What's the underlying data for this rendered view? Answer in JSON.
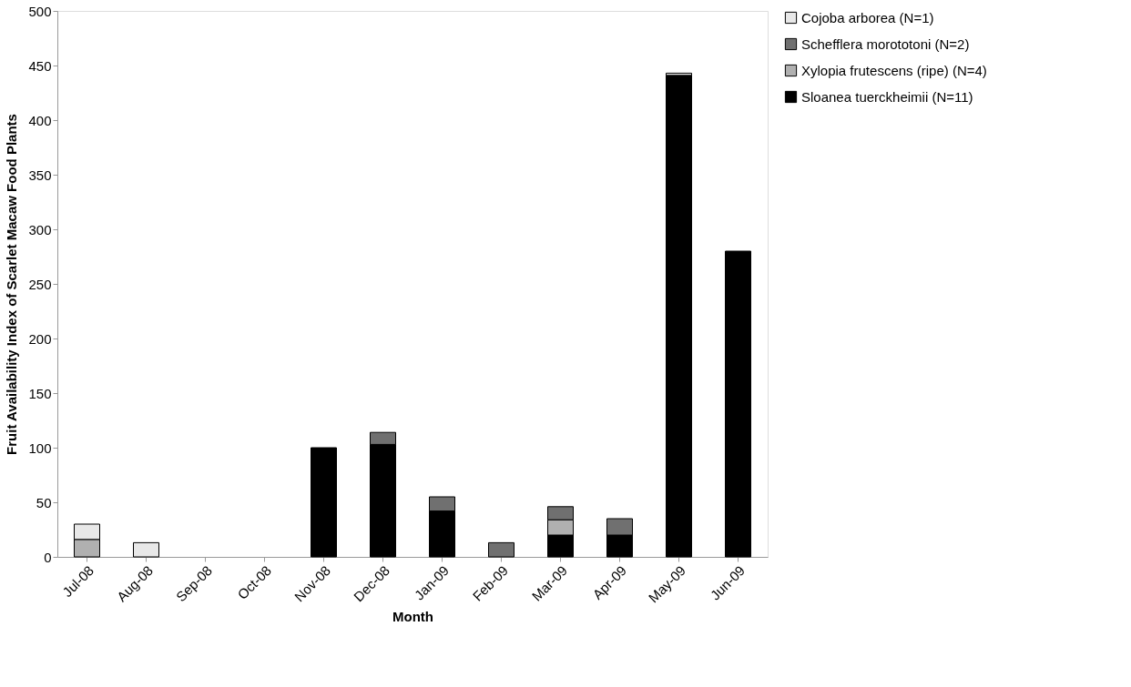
{
  "chart_data": {
    "type": "bar",
    "stacked": true,
    "xlabel": "Month",
    "ylabel": "Fruit Availability Index of Scarlet Macaw Food Plants",
    "categories": [
      "Jul-08",
      "Aug-08",
      "Sep-08",
      "Oct-08",
      "Nov-08",
      "Dec-08",
      "Jan-09",
      "Feb-09",
      "Mar-09",
      "Apr-09",
      "May-09",
      "Jun-09"
    ],
    "series": [
      {
        "name": "Sloanea tuerckheimii (N=11)",
        "color": "#000000",
        "values": [
          null,
          null,
          null,
          null,
          100,
          103,
          42,
          null,
          20,
          20,
          441,
          280
        ]
      },
      {
        "name": "Xylopia frutescens (ripe) (N=4)",
        "color": "#b0b0b0",
        "values": [
          16,
          null,
          null,
          null,
          null,
          null,
          null,
          null,
          14,
          null,
          null,
          null
        ]
      },
      {
        "name": "Schefflera morototoni (N=2)",
        "color": "#707070",
        "values": [
          null,
          null,
          null,
          null,
          null,
          11,
          13,
          13,
          12,
          15,
          null,
          null
        ]
      },
      {
        "name": "Cojoba arborea (N=1)",
        "color": "#e8e8e8",
        "values": [
          14,
          13,
          null,
          null,
          null,
          null,
          null,
          null,
          null,
          null,
          2,
          null
        ]
      }
    ],
    "ylim": [
      0,
      500
    ],
    "yticks": [
      0,
      50,
      100,
      150,
      200,
      250,
      300,
      350,
      400,
      450,
      500
    ],
    "grid": false,
    "legend": "top right"
  }
}
